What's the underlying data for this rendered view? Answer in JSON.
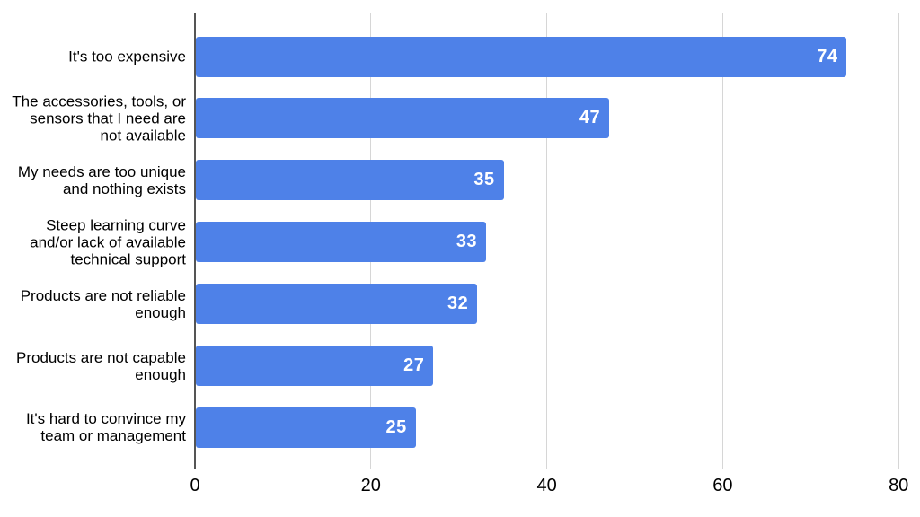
{
  "chart_data": {
    "type": "bar",
    "orientation": "horizontal",
    "title": "",
    "xlabel": "",
    "ylabel": "",
    "categories": [
      "It's too expensive",
      "The accessories, tools, or\nsensors that I need are\nnot available",
      "My needs are too unique\nand nothing exists",
      "Steep learning curve\nand/or lack of available\ntechnical support",
      "Products are not reliable\nenough",
      "Products are not capable\nenough",
      "It's hard to convince my\nteam or management"
    ],
    "values": [
      74,
      47,
      35,
      33,
      32,
      27,
      25
    ],
    "xlim": [
      0,
      80
    ],
    "xticks": [
      0,
      20,
      40,
      60,
      80
    ],
    "grid": true,
    "legend": "none",
    "value_labels_shown": true,
    "colors": {
      "bar": "#4e81e8",
      "value_label": "#ffffff",
      "axis_line": "#555555",
      "gridline": "#d6d6d6",
      "tick_label": "#000000",
      "category_label": "#000000",
      "background": "#ffffff"
    }
  }
}
